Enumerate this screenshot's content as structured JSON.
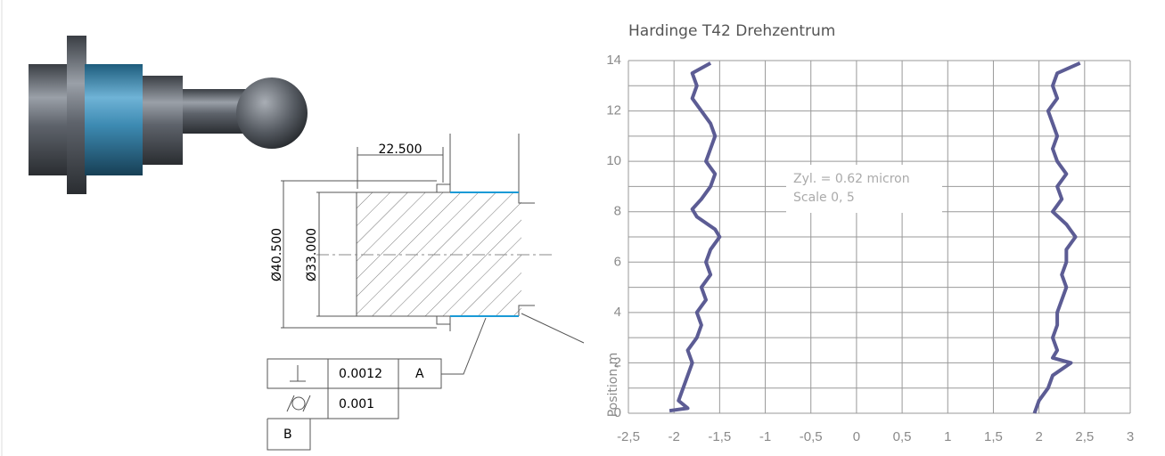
{
  "drawing": {
    "dim_top": "22.500",
    "dim_outer": "Ø40.500",
    "dim_inner": "Ø33.000",
    "table": {
      "rows": [
        [
          "0.0012",
          "A"
        ],
        [
          "0.001"
        ],
        [
          "B"
        ]
      ]
    }
  },
  "chart_data": {
    "type": "line",
    "title": "Hardinge T42 Drehzentrum",
    "y_label": "Position,m",
    "annotations": [
      "Zyl. = 0.62 micron",
      "Scale 0, 5"
    ],
    "series": [
      {
        "color": "#5c5c94",
        "x": [
          -2.05,
          -1.85,
          -1.95,
          -1.9,
          -1.85,
          -1.8,
          -1.85,
          -1.75,
          -1.7,
          -1.75,
          -1.65,
          -1.7,
          -1.6,
          -1.65,
          -1.6,
          -1.5,
          -1.55,
          -1.75,
          -1.8,
          -1.7,
          -1.6,
          -1.55,
          -1.65,
          -1.6,
          -1.55,
          -1.6,
          -1.7,
          -1.8,
          -1.75,
          -1.8,
          -1.6
        ],
        "y": [
          0.1,
          0.2,
          0.5,
          1,
          1.5,
          2,
          2.5,
          3,
          3.5,
          4,
          4.5,
          5,
          5.5,
          6,
          6.5,
          7,
          7.3,
          7.8,
          8.1,
          8.5,
          9,
          9.5,
          10,
          10.5,
          11,
          11.5,
          12,
          12.5,
          13,
          13.5,
          13.9
        ]
      },
      {
        "color": "#5c5c94",
        "x": [
          1.95,
          2.0,
          2.1,
          2.15,
          2.35,
          2.15,
          2.2,
          2.15,
          2.2,
          2.2,
          2.25,
          2.3,
          2.25,
          2.3,
          2.3,
          2.4,
          2.3,
          2.15,
          2.25,
          2.2,
          2.3,
          2.2,
          2.15,
          2.2,
          2.15,
          2.1,
          2.2,
          2.15,
          2.2,
          2.45
        ],
        "y": [
          0,
          0.5,
          1,
          1.5,
          2,
          2.2,
          2.5,
          3,
          3.5,
          4,
          4.5,
          5,
          5.5,
          6,
          6.5,
          7,
          7.5,
          8,
          8.5,
          9,
          9.5,
          10,
          10.5,
          11,
          11.5,
          12,
          12.5,
          13,
          13.5,
          13.9
        ]
      }
    ],
    "xlim": [
      -2.5,
      3
    ],
    "ylim": [
      0,
      14
    ],
    "xticks": [
      {
        "value": -2.5,
        "label": "-2,5"
      },
      -2,
      {
        "value": -1.5,
        "label": "-1,5"
      },
      -1,
      {
        "value": -0.5,
        "label": "-0,5"
      },
      0,
      {
        "value": 0.5,
        "label": "0,5"
      },
      1,
      {
        "value": 1.5,
        "label": "1,5"
      },
      2,
      {
        "value": 2.5,
        "label": "2,5"
      },
      3
    ],
    "yticks": [
      0,
      2,
      4,
      6,
      8,
      10,
      12,
      14
    ],
    "grid": true
  }
}
